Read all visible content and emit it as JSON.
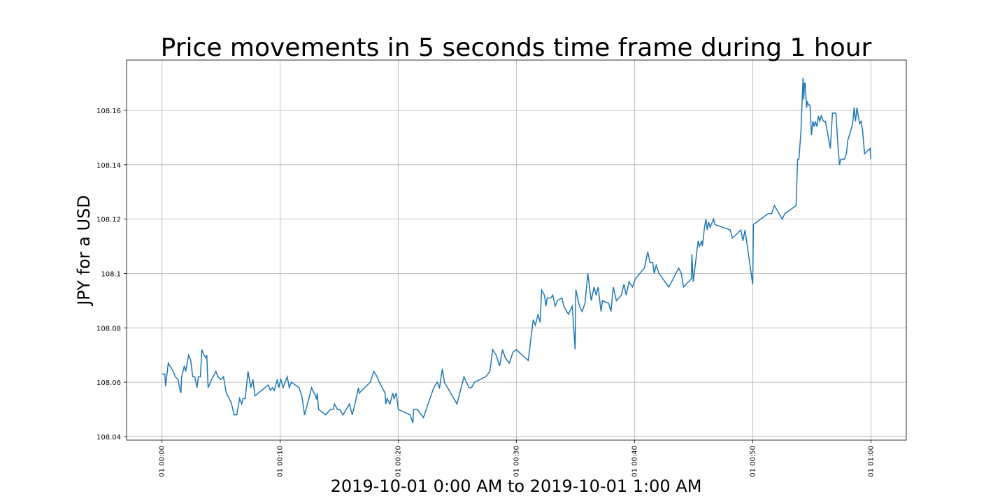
{
  "chart_data": {
    "type": "line",
    "title": "Price movements in 5 seconds time frame during 1 hour",
    "x_label": "2019-10-01 0:00 AM to 2019-10-01 1:00 AM",
    "y_label": "JPY for a USD",
    "color": "#1f77b4",
    "grid": true,
    "xlim": [
      -3,
      63
    ],
    "ylim": [
      108.0387,
      108.1785
    ],
    "xticks": [
      {
        "value": 0,
        "label": "01 00:00"
      },
      {
        "value": 10,
        "label": "01 00:10"
      },
      {
        "value": 20,
        "label": "01 00:20"
      },
      {
        "value": 30,
        "label": "01 00:30"
      },
      {
        "value": 40,
        "label": "01 00:40"
      },
      {
        "value": 50,
        "label": "01 00:50"
      },
      {
        "value": 60,
        "label": "01 01:00"
      }
    ],
    "yticks": [
      108.04,
      108.06,
      108.08,
      108.1,
      108.12,
      108.14,
      108.16
    ],
    "x": [
      0,
      0.24,
      0.3,
      0.53,
      0.95,
      1.12,
      1.36,
      1.48,
      1.6,
      1.66,
      1.89,
      2.01,
      2.25,
      2.43,
      2.6,
      2.78,
      2.96,
      3.08,
      3.25,
      3.37,
      3.55,
      3.73,
      3.79,
      3.9,
      4.2,
      4.56,
      4.73,
      4.97,
      5.2,
      5.44,
      5.86,
      6.1,
      6.33,
      6.57,
      6.75,
      6.86,
      7.04,
      7.28,
      7.51,
      7.69,
      7.87,
      8.99,
      9.17,
      9.35,
      9.5,
      9.76,
      9.88,
      10.06,
      10.24,
      10.6,
      10.77,
      10.95,
      11.6,
      11.83,
      12.07,
      12.43,
      12.66,
      13.08,
      13.14,
      13.25,
      13.85,
      14.26,
      14.5,
      14.6,
      14.85,
      15.03,
      15.33,
      15.86,
      16.1,
      16.33,
      16.63,
      16.69,
      17.63,
      17.93,
      18.2,
      18.4,
      18.88,
      18.94,
      19.05,
      19.29,
      19.53,
      19.64,
      19.82,
      20.0,
      21.0,
      21.24,
      21.3,
      21.6,
      22.13,
      23.0,
      23.3,
      23.49,
      23.73,
      23.9,
      24.97,
      25.56,
      25.98,
      26.2,
      26.45,
      27.4,
      27.75,
      27.99,
      28.28,
      28.58,
      28.82,
      29.05,
      29.4,
      29.7,
      30.0,
      30.47,
      31.0,
      31.42,
      31.6,
      31.83,
      32.01,
      32.13,
      32.37,
      32.5,
      32.6,
      32.9,
      33.08,
      33.28,
      33.46,
      33.85,
      34.0,
      34.4,
      34.73,
      34.85,
      34.97,
      35.03,
      35.33,
      35.56,
      35.8,
      36.04,
      36.33,
      36.57,
      36.75,
      36.92,
      37.16,
      37.28,
      37.81,
      38.0,
      38.2,
      38.46,
      38.88,
      39.1,
      39.29,
      39.53,
      39.82,
      40.06,
      40.83,
      41.12,
      41.3,
      41.54,
      41.66,
      41.83,
      42.07,
      42.9,
      43.73,
      43.96,
      44.14,
      44.8,
      44.85,
      44.97,
      45.38,
      45.5,
      45.68,
      45.74,
      45.92,
      46.04,
      46.15,
      46.27,
      46.39,
      46.69,
      46.8,
      48.1,
      48.28,
      49.0,
      49.17,
      49.35,
      50.0,
      50.06,
      51.3,
      51.6,
      51.83,
      52.5,
      52.72,
      53.67,
      53.8,
      53.91,
      54.08,
      54.26,
      54.32,
      54.38,
      54.44,
      54.56,
      54.62,
      54.73,
      54.85,
      54.97,
      55.09,
      55.21,
      55.3,
      55.44,
      55.56,
      55.68,
      55.8,
      55.98,
      56.15,
      56.57,
      56.75,
      57.04,
      57.22,
      57.34,
      57.46,
      57.75,
      57.93,
      58.05,
      58.46,
      58.58,
      58.7,
      58.82,
      59.05,
      59.17,
      59.29,
      59.47,
      59.94,
      60.0
    ],
    "values": [
      108.063,
      108.063,
      108.0585,
      108.067,
      108.064,
      108.062,
      108.061,
      108.058,
      108.056,
      108.062,
      108.066,
      108.064,
      108.07,
      108.068,
      108.062,
      108.062,
      108.058,
      108.062,
      108.062,
      108.072,
      108.07,
      108.069,
      108.07,
      108.058,
      108.061,
      108.064,
      108.062,
      108.061,
      108.062,
      108.056,
      108.0525,
      108.048,
      108.048,
      108.054,
      108.052,
      108.054,
      108.054,
      108.064,
      108.058,
      108.061,
      108.055,
      108.059,
      108.057,
      108.058,
      108.057,
      108.061,
      108.058,
      108.061,
      108.058,
      108.062,
      108.058,
      108.06,
      108.058,
      108.055,
      108.048,
      108.054,
      108.058,
      108.054,
      108.056,
      108.05,
      108.048,
      108.05,
      108.05,
      108.052,
      108.05,
      108.05,
      108.048,
      108.052,
      108.048,
      108.052,
      108.058,
      108.056,
      108.06,
      108.064,
      108.062,
      108.06,
      108.056,
      108.052,
      108.054,
      108.052,
      108.056,
      108.054,
      108.056,
      108.05,
      108.048,
      108.045,
      108.05,
      108.05,
      108.047,
      108.058,
      108.06,
      108.058,
      108.065,
      108.06,
      108.052,
      108.062,
      108.058,
      108.058,
      108.06,
      108.062,
      108.064,
      108.072,
      108.07,
      108.066,
      108.072,
      108.069,
      108.067,
      108.071,
      108.072,
      108.07,
      108.068,
      108.083,
      108.081,
      108.085,
      108.082,
      108.094,
      108.092,
      108.088,
      108.091,
      108.091,
      108.092,
      108.088,
      108.09,
      108.091,
      108.088,
      108.085,
      108.088,
      108.08,
      108.072,
      108.094,
      108.088,
      108.086,
      108.089,
      108.1,
      108.09,
      108.095,
      108.092,
      108.095,
      108.086,
      108.09,
      108.089,
      108.086,
      108.095,
      108.09,
      108.092,
      108.096,
      108.092,
      108.097,
      108.095,
      108.098,
      108.102,
      108.108,
      108.104,
      108.104,
      108.1,
      108.103,
      108.1,
      108.095,
      108.102,
      108.1,
      108.095,
      108.098,
      108.107,
      108.097,
      108.112,
      108.11,
      108.112,
      108.11,
      108.117,
      108.12,
      108.116,
      108.119,
      108.117,
      108.12,
      108.118,
      108.116,
      108.113,
      108.116,
      108.112,
      108.116,
      108.096,
      108.118,
      108.122,
      108.122,
      108.125,
      108.12,
      108.122,
      108.125,
      108.142,
      108.142,
      108.152,
      108.172,
      108.164,
      108.17,
      108.17,
      108.161,
      108.163,
      108.162,
      108.162,
      108.151,
      108.156,
      108.154,
      108.156,
      108.154,
      108.158,
      108.156,
      108.158,
      108.156,
      108.156,
      108.146,
      108.159,
      108.159,
      108.147,
      108.14,
      108.142,
      108.142,
      108.144,
      108.149,
      108.155,
      108.161,
      108.156,
      108.161,
      108.155,
      108.156,
      108.153,
      108.144,
      108.146,
      108.142
    ]
  }
}
